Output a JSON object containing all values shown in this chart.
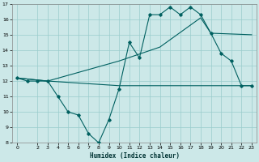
{
  "xlabel": "Humidex (Indice chaleur)",
  "ylabel": "",
  "bg_color": "#cce8e8",
  "grid_color": "#99cccc",
  "line_color": "#006060",
  "xlim": [
    -0.5,
    23.5
  ],
  "ylim": [
    8,
    17
  ],
  "xticks": [
    0,
    2,
    3,
    4,
    5,
    6,
    7,
    8,
    9,
    10,
    11,
    12,
    13,
    14,
    15,
    16,
    17,
    18,
    19,
    20,
    21,
    22,
    23
  ],
  "yticks": [
    8,
    9,
    10,
    11,
    12,
    13,
    14,
    15,
    16,
    17
  ],
  "line1_x": [
    0,
    1,
    2,
    3,
    4,
    5,
    6,
    7,
    8,
    9,
    10,
    11,
    12,
    13,
    14,
    15,
    16,
    17,
    18,
    19,
    20,
    21,
    22,
    23
  ],
  "line1_y": [
    12.2,
    12.0,
    12.0,
    12.0,
    11.0,
    10.0,
    9.8,
    8.6,
    8.0,
    9.5,
    11.5,
    14.5,
    13.5,
    16.3,
    16.3,
    16.8,
    16.3,
    16.8,
    16.3,
    15.1,
    13.8,
    13.3,
    11.7,
    11.7
  ],
  "line2_x": [
    0,
    3,
    10,
    23
  ],
  "line2_y": [
    12.2,
    12.0,
    11.7,
    11.7
  ],
  "line3_x": [
    0,
    3,
    10,
    14,
    18,
    19,
    23
  ],
  "line3_y": [
    12.2,
    12.0,
    13.3,
    14.2,
    16.1,
    15.1,
    15.0
  ]
}
